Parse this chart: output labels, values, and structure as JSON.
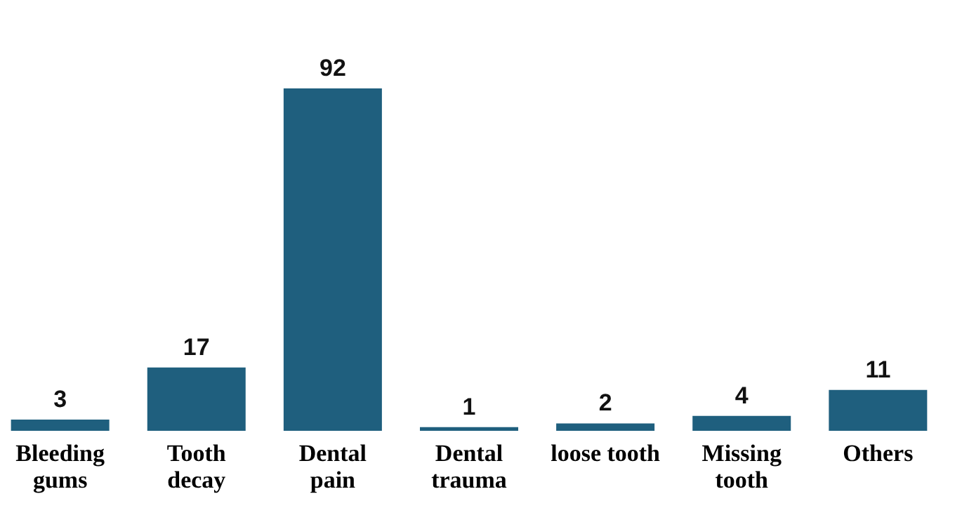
{
  "chart_data": {
    "type": "bar",
    "categories": [
      "Bleeding\ngums",
      "Tooth\ndecay",
      "Dental\npain",
      "Dental\ntrauma",
      "loose tooth",
      "Missing\ntooth",
      "Others"
    ],
    "values": [
      3,
      17,
      92,
      1,
      2,
      4,
      11
    ],
    "color": "#1f5f7e",
    "data_labels": true
  }
}
